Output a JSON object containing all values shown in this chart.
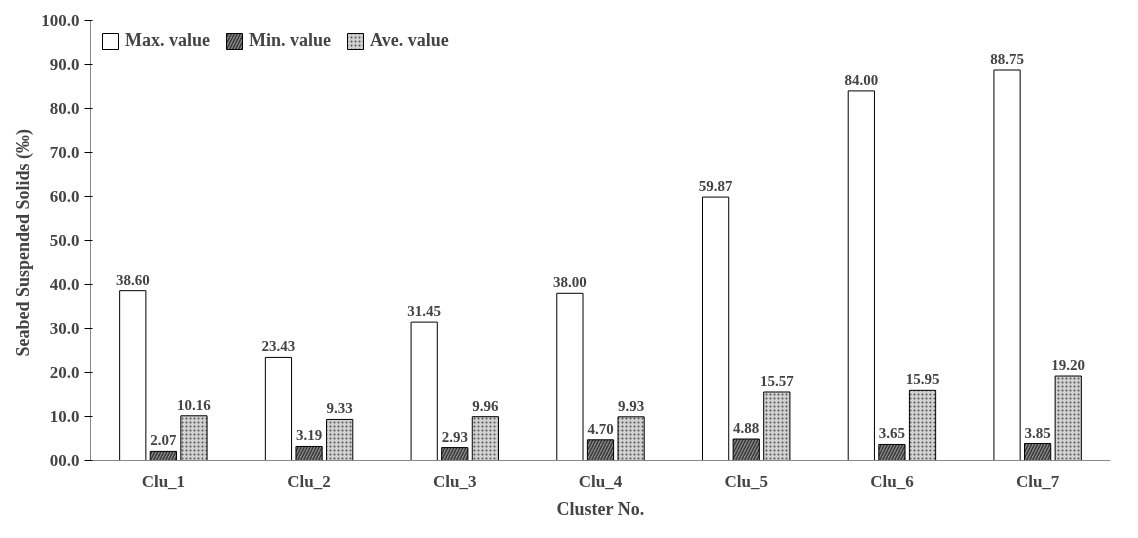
{
  "chart_data": {
    "type": "bar",
    "xlabel": "Cluster No.",
    "ylabel": "Seabed Suspended Solids  (‰)",
    "categories": [
      "Clu_1",
      "Clu_2",
      "Clu_3",
      "Clu_4",
      "Clu_5",
      "Clu_6",
      "Clu_7"
    ],
    "series": [
      {
        "name": "Max. value",
        "color": "#ffffff",
        "values": [
          38.6,
          23.43,
          31.45,
          38.0,
          59.87,
          84.0,
          88.75
        ],
        "value_labels": [
          "38.60",
          "23.43",
          "31.45",
          "38.00",
          "59.87",
          "84.00",
          "88.75"
        ]
      },
      {
        "name": "Min. value",
        "color": "#8c8c8c",
        "values": [
          2.07,
          3.19,
          2.93,
          4.7,
          4.88,
          3.65,
          3.85
        ],
        "value_labels": [
          "2.07",
          "3.19",
          "2.93",
          "4.70",
          "4.88",
          "3.65",
          "3.85"
        ]
      },
      {
        "name": "Ave. value",
        "color": "#d0d0d0",
        "values": [
          10.16,
          9.33,
          9.96,
          9.93,
          15.57,
          15.95,
          19.2
        ],
        "value_labels": [
          "10.16",
          "9.33",
          "9.96",
          "9.93",
          "15.57",
          "15.95",
          "19.20"
        ]
      }
    ],
    "ylim": [
      0,
      100
    ],
    "yticks": [
      {
        "value": 0,
        "label": "00.0"
      },
      {
        "value": 10,
        "label": "10.0"
      },
      {
        "value": 20,
        "label": "20.0"
      },
      {
        "value": 30,
        "label": "30.0"
      },
      {
        "value": 40,
        "label": "40.0"
      },
      {
        "value": 50,
        "label": "50.0"
      },
      {
        "value": 60,
        "label": "60.0"
      },
      {
        "value": 70,
        "label": "70.0"
      },
      {
        "value": 80,
        "label": "80.0"
      },
      {
        "value": 90,
        "label": "90.0"
      },
      {
        "value": 100,
        "label": "100.0"
      }
    ],
    "grid": false,
    "legend": "top left"
  }
}
